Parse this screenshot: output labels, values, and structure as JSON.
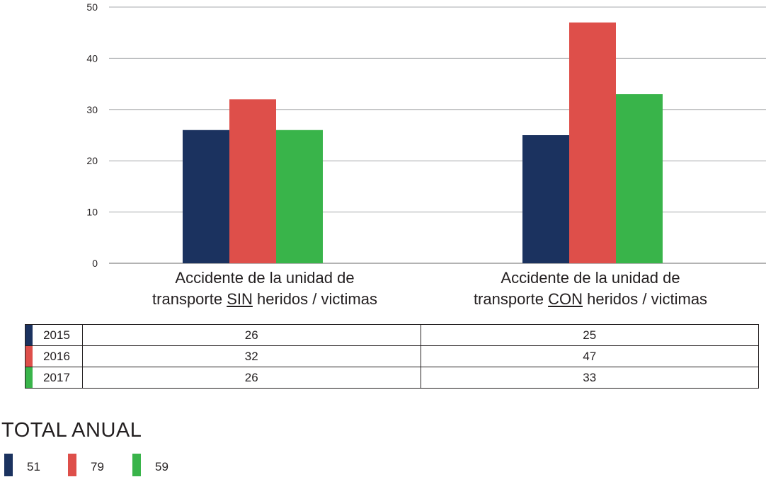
{
  "chart_data": {
    "type": "bar",
    "categories": [
      {
        "pre": "Accidente de la unidad de\ntransporte ",
        "emph": "SIN",
        "post": " heridos / victimas"
      },
      {
        "pre": "Accidente de la unidad de\ntransporte ",
        "emph": "CON",
        "post": " heridos / victimas"
      }
    ],
    "series": [
      {
        "name": "2015",
        "color": "#1b325f",
        "values": [
          26,
          25
        ]
      },
      {
        "name": "2016",
        "color": "#de4f4a",
        "values": [
          32,
          47
        ]
      },
      {
        "name": "2017",
        "color": "#39b44a",
        "values": [
          26,
          33
        ]
      }
    ],
    "ylim": [
      0,
      50
    ],
    "yticks": [
      0,
      10,
      20,
      30,
      40,
      50
    ],
    "grid": true
  },
  "table": {
    "rows": [
      {
        "year": "2015",
        "values": [
          "26",
          "25"
        ],
        "color": "#1b325f"
      },
      {
        "year": "2016",
        "values": [
          "32",
          "47"
        ],
        "color": "#de4f4a"
      },
      {
        "year": "2017",
        "values": [
          "26",
          "33"
        ],
        "color": "#39b44a"
      }
    ]
  },
  "totals": {
    "title": "TOTAL ANUAL",
    "items": [
      {
        "value": "51",
        "color": "#1b325f"
      },
      {
        "value": "79",
        "color": "#de4f4a"
      },
      {
        "value": "59",
        "color": "#39b44a"
      }
    ]
  }
}
